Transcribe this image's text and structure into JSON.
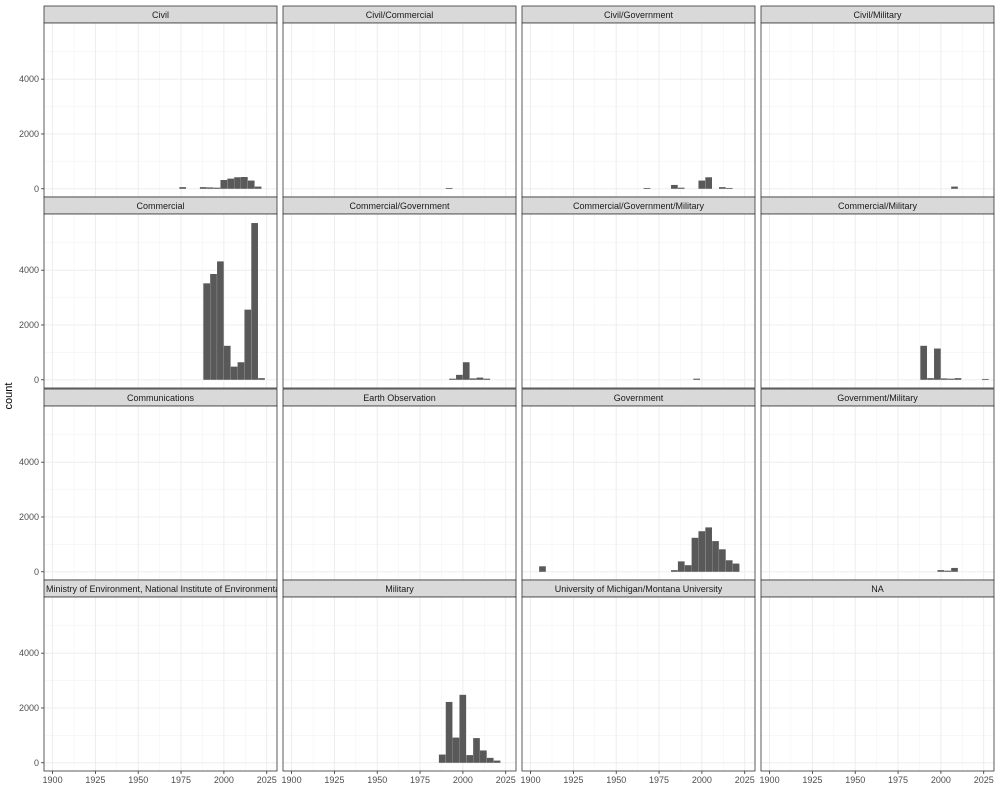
{
  "chart_data": {
    "type": "bar",
    "ylabel": "count",
    "xlabel": "",
    "x_domain": [
      1895,
      2031
    ],
    "y_domain": [
      -300,
      6050
    ],
    "x_ticks": [
      1900,
      1925,
      1950,
      1975,
      2000,
      2025
    ],
    "y_ticks": [
      0,
      2000,
      4000
    ],
    "bin_width": 3.9,
    "grid": true,
    "colors": {
      "bar": "#595959",
      "strip_fill": "#d9d9d9",
      "panel_border": "#333333",
      "grid": "#ebebeb"
    },
    "panels": [
      {
        "title": "Civil",
        "bins": [
          [
            1974,
            60
          ],
          [
            1986,
            60
          ],
          [
            1990,
            50
          ],
          [
            1994,
            40
          ],
          [
            1998,
            320
          ],
          [
            2002,
            370
          ],
          [
            2006,
            420
          ],
          [
            2010,
            430
          ],
          [
            2014,
            300
          ],
          [
            2018,
            80
          ]
        ]
      },
      {
        "title": "Civil/Commercial",
        "bins": [
          [
            1990,
            30
          ]
        ]
      },
      {
        "title": "Civil/Government",
        "bins": [
          [
            1966,
            30
          ],
          [
            1982,
            140
          ],
          [
            1986,
            40
          ],
          [
            1998,
            300
          ],
          [
            2002,
            420
          ],
          [
            2010,
            60
          ],
          [
            2014,
            30
          ]
        ]
      },
      {
        "title": "Civil/Military",
        "bins": [
          [
            2006,
            80
          ]
        ]
      },
      {
        "title": "Commercial",
        "bins": [
          [
            1988,
            3520
          ],
          [
            1992,
            3860
          ],
          [
            1996,
            4320
          ],
          [
            2000,
            1240
          ],
          [
            2004,
            480
          ],
          [
            2008,
            640
          ],
          [
            2012,
            2560
          ],
          [
            2016,
            5720
          ],
          [
            2020,
            60
          ]
        ]
      },
      {
        "title": "Commercial/Government",
        "bins": [
          [
            1992,
            40
          ],
          [
            1996,
            180
          ],
          [
            2000,
            640
          ],
          [
            2004,
            50
          ],
          [
            2008,
            80
          ],
          [
            2012,
            40
          ]
        ]
      },
      {
        "title": "Commercial/Government/Military",
        "bins": [
          [
            1995,
            40
          ]
        ]
      },
      {
        "title": "Commercial/Military",
        "bins": [
          [
            1988,
            1240
          ],
          [
            1992,
            60
          ],
          [
            1996,
            1140
          ],
          [
            2000,
            50
          ],
          [
            2004,
            40
          ],
          [
            2008,
            60
          ],
          [
            2024,
            30
          ]
        ]
      },
      {
        "title": "Communications",
        "bins": []
      },
      {
        "title": "Earth Observation",
        "bins": []
      },
      {
        "title": "Government",
        "bins": [
          [
            1905,
            200
          ],
          [
            1982,
            60
          ],
          [
            1986,
            380
          ],
          [
            1990,
            240
          ],
          [
            1994,
            1240
          ],
          [
            1998,
            1480
          ],
          [
            2002,
            1620
          ],
          [
            2006,
            1120
          ],
          [
            2010,
            820
          ],
          [
            2014,
            420
          ],
          [
            2018,
            300
          ]
        ]
      },
      {
        "title": "Government/Military",
        "bins": [
          [
            1998,
            60
          ],
          [
            2002,
            40
          ],
          [
            2006,
            140
          ]
        ]
      },
      {
        "title": "Ministry of Environment, National Institute of Environmental S",
        "bins": []
      },
      {
        "title": "Military",
        "bins": [
          [
            1986,
            300
          ],
          [
            1990,
            2220
          ],
          [
            1994,
            920
          ],
          [
            1998,
            2480
          ],
          [
            2002,
            280
          ],
          [
            2006,
            900
          ],
          [
            2010,
            450
          ],
          [
            2014,
            180
          ],
          [
            2018,
            80
          ]
        ]
      },
      {
        "title": "University of Michigan/Montana University",
        "bins": []
      },
      {
        "title": "NA",
        "bins": []
      }
    ]
  }
}
